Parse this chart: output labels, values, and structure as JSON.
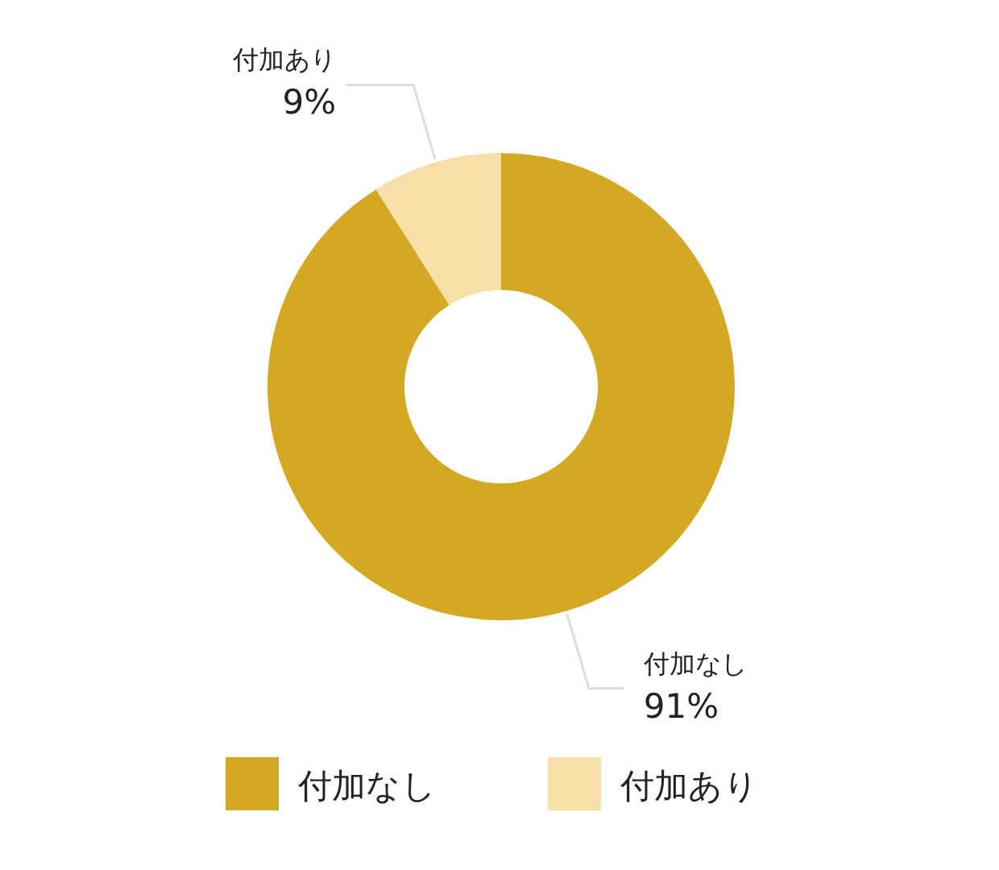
{
  "chart_data": {
    "type": "donut",
    "categories": [
      "付加なし",
      "付加あり"
    ],
    "values": [
      91,
      9
    ],
    "colors": [
      "#d5a823",
      "#f6e0a8"
    ],
    "value_labels": [
      "91%",
      "9%"
    ],
    "legend": "bottom"
  }
}
